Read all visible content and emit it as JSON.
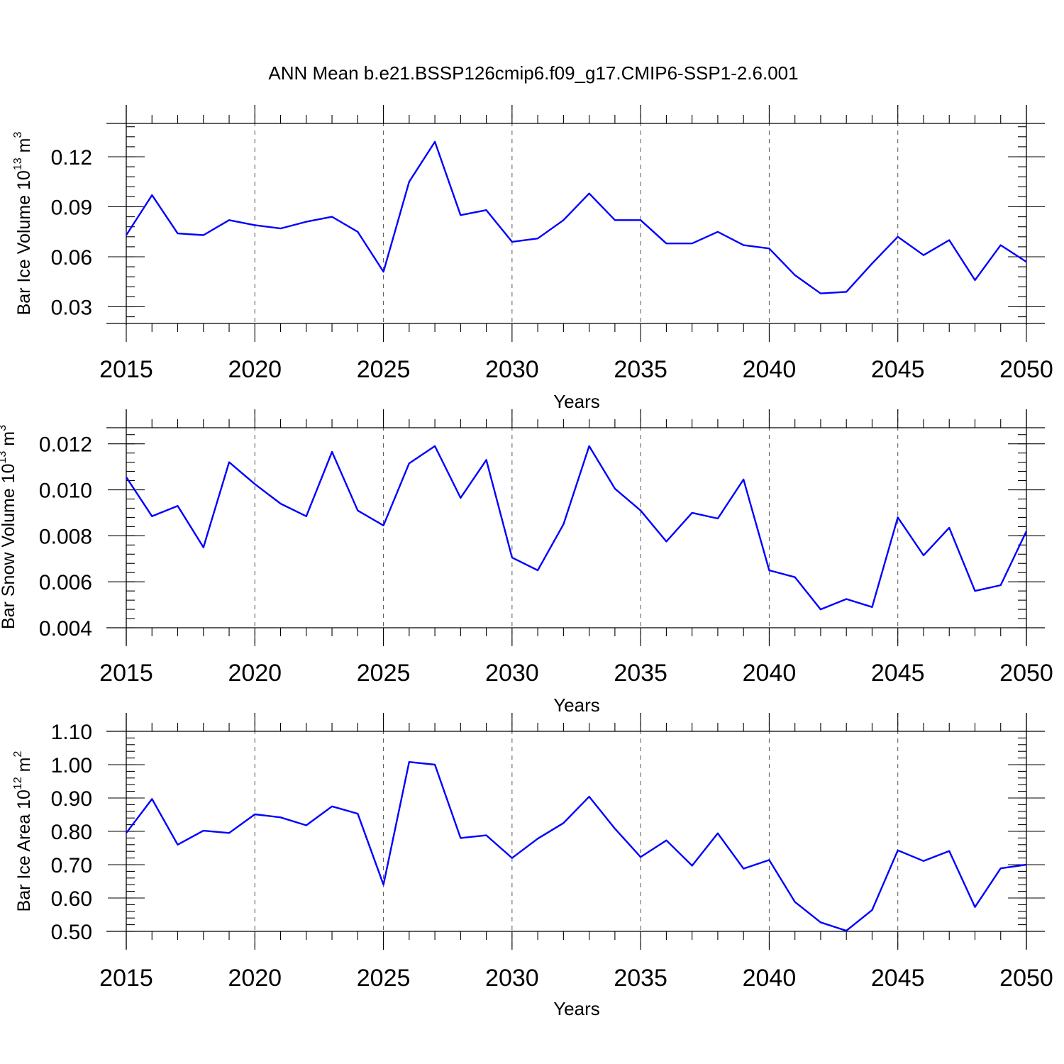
{
  "figure": {
    "title": "ANN Mean b.e21.BSSP126cmip6.f09_g17.CMIP6-SSP1-2.6.001"
  },
  "colors": {
    "series": "#0000ff",
    "axis": "#000000",
    "grid": "#555555"
  },
  "chart_data": [
    {
      "type": "line",
      "xlabel": "Years",
      "ylabel_main": "Bar Ice Volume 10",
      "ylabel_exp": "13",
      "ylabel_unit": " m",
      "ylabel_unit_exp": "3",
      "xlim": [
        2015,
        2050
      ],
      "ylim": [
        0.02,
        0.14
      ],
      "x_ticks": [
        2015,
        2020,
        2025,
        2030,
        2035,
        2040,
        2045,
        2050
      ],
      "y_ticks": [
        "0.03",
        "0.06",
        "0.09",
        "0.12"
      ],
      "grid": "vertical dashed at major x ticks",
      "x": [
        2015,
        2016,
        2017,
        2018,
        2019,
        2020,
        2021,
        2022,
        2023,
        2024,
        2025,
        2026,
        2027,
        2028,
        2029,
        2030,
        2031,
        2032,
        2033,
        2034,
        2035,
        2036,
        2037,
        2038,
        2039,
        2040,
        2041,
        2042,
        2043,
        2044,
        2045,
        2046,
        2047,
        2048,
        2049,
        2050
      ],
      "y": [
        0.073,
        0.097,
        0.074,
        0.073,
        0.082,
        0.079,
        0.077,
        0.081,
        0.084,
        0.075,
        0.051,
        0.105,
        0.129,
        0.085,
        0.088,
        0.069,
        0.071,
        0.082,
        0.098,
        0.082,
        0.082,
        0.068,
        0.068,
        0.075,
        0.067,
        0.065,
        0.049,
        0.038,
        0.039,
        0.056,
        0.072,
        0.061,
        0.07,
        0.046,
        0.067,
        0.057
      ]
    },
    {
      "type": "line",
      "xlabel": "Years",
      "ylabel_main": "Bar Snow Volume 10",
      "ylabel_exp": "13",
      "ylabel_unit": " m",
      "ylabel_unit_exp": "3",
      "xlim": [
        2015,
        2050
      ],
      "ylim": [
        0.004,
        0.0127
      ],
      "x_ticks": [
        2015,
        2020,
        2025,
        2030,
        2035,
        2040,
        2045,
        2050
      ],
      "y_ticks": [
        "0.004",
        "0.006",
        "0.008",
        "0.010",
        "0.012"
      ],
      "grid": "vertical dashed at major x ticks",
      "x": [
        2015,
        2016,
        2017,
        2018,
        2019,
        2020,
        2021,
        2022,
        2023,
        2024,
        2025,
        2026,
        2027,
        2028,
        2029,
        2030,
        2031,
        2032,
        2033,
        2034,
        2035,
        2036,
        2037,
        2038,
        2039,
        2040,
        2041,
        2042,
        2043,
        2044,
        2045,
        2046,
        2047,
        2048,
        2049,
        2050
      ],
      "y": [
        0.01055,
        0.00885,
        0.0093,
        0.0075,
        0.0112,
        0.01025,
        0.0094,
        0.00885,
        0.01165,
        0.0091,
        0.00845,
        0.01115,
        0.0119,
        0.00965,
        0.0113,
        0.00705,
        0.0065,
        0.0085,
        0.0119,
        0.01005,
        0.0091,
        0.00775,
        0.009,
        0.00875,
        0.01045,
        0.0065,
        0.0062,
        0.0048,
        0.00525,
        0.0049,
        0.0088,
        0.00715,
        0.00835,
        0.0056,
        0.00585,
        0.0082
      ]
    },
    {
      "type": "line",
      "xlabel": "Years",
      "ylabel_main": "Bar Ice Area 10",
      "ylabel_exp": "12",
      "ylabel_unit": " m",
      "ylabel_unit_exp": "2",
      "xlim": [
        2015,
        2050
      ],
      "ylim": [
        0.5,
        1.1
      ],
      "x_ticks": [
        2015,
        2020,
        2025,
        2030,
        2035,
        2040,
        2045,
        2050
      ],
      "y_ticks": [
        "0.50",
        "0.60",
        "0.70",
        "0.80",
        "0.90",
        "1.00",
        "1.10"
      ],
      "grid": "vertical dashed at major x ticks",
      "x": [
        2015,
        2016,
        2017,
        2018,
        2019,
        2020,
        2021,
        2022,
        2023,
        2024,
        2025,
        2026,
        2027,
        2028,
        2029,
        2030,
        2031,
        2032,
        2033,
        2034,
        2035,
        2036,
        2037,
        2038,
        2039,
        2040,
        2041,
        2042,
        2043,
        2044,
        2045,
        2046,
        2047,
        2048,
        2049,
        2050
      ],
      "y": [
        0.795,
        0.897,
        0.76,
        0.802,
        0.795,
        0.851,
        0.842,
        0.818,
        0.875,
        0.853,
        0.64,
        1.008,
        1.0,
        0.78,
        0.788,
        0.72,
        0.778,
        0.825,
        0.904,
        0.808,
        0.723,
        0.773,
        0.697,
        0.794,
        0.688,
        0.714,
        0.588,
        0.527,
        0.502,
        0.564,
        0.743,
        0.711,
        0.741,
        0.573,
        0.689,
        0.7
      ]
    }
  ]
}
